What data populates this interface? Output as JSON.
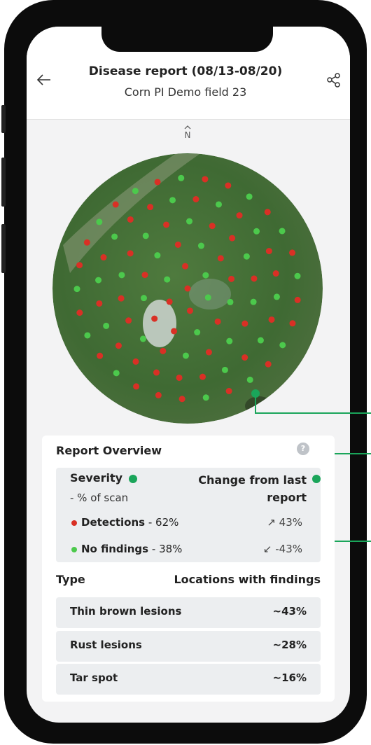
{
  "header": {
    "title": "Disease report (08/13-08/20)",
    "subtitle": "Corn PI Demo field 23"
  },
  "map": {
    "north": "N"
  },
  "overview": {
    "title": "Report Overview",
    "help": "?"
  },
  "severity": {
    "heading": "Severity",
    "subheading": "- % of scan",
    "change_heading": "Change from last report",
    "rows": [
      {
        "label": "Detections",
        "value": "- 62%",
        "change": "↗ 43%"
      },
      {
        "label": "No findings",
        "value": "- 38%",
        "change": "↙ -43%"
      }
    ]
  },
  "types": {
    "heading": "Type",
    "value_heading": "Locations with findings",
    "rows": [
      {
        "label": "Thin brown lesions",
        "value": "~43%"
      },
      {
        "label": "Rust lesions",
        "value": "~28%"
      },
      {
        "label": "Tar spot",
        "value": "~16%"
      }
    ]
  }
}
